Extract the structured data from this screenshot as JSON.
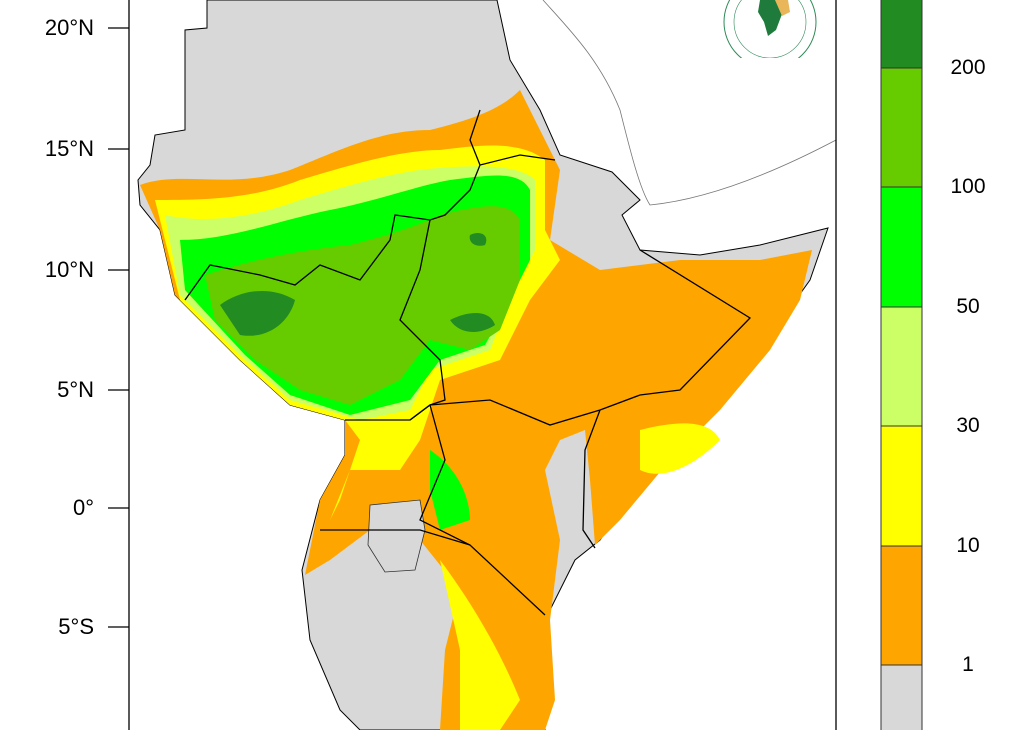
{
  "map": {
    "latitude_labels": [
      "20°N",
      "15°N",
      "10°N",
      "5°N",
      "0°",
      "5°S"
    ],
    "logo_text": "AUTORITE INTERGOUVERNEMENTALE POUR LE DEVELOPPEMENT"
  },
  "legend": {
    "labels": [
      "200",
      "100",
      "50",
      "30",
      "10",
      "1"
    ],
    "colors": [
      "#228B22",
      "#66CC00",
      "#00FF00",
      "#CCFF66",
      "#FFFF00",
      "#FFA500",
      "#D8D8D8"
    ]
  },
  "colors": {
    "land": "#D8D8D8",
    "orange": "#FFA500",
    "yellow": "#FFFF00",
    "lightgreen": "#CCFF66",
    "green": "#00FF00",
    "midgreen": "#66CC00",
    "darkgreen": "#228B22"
  }
}
